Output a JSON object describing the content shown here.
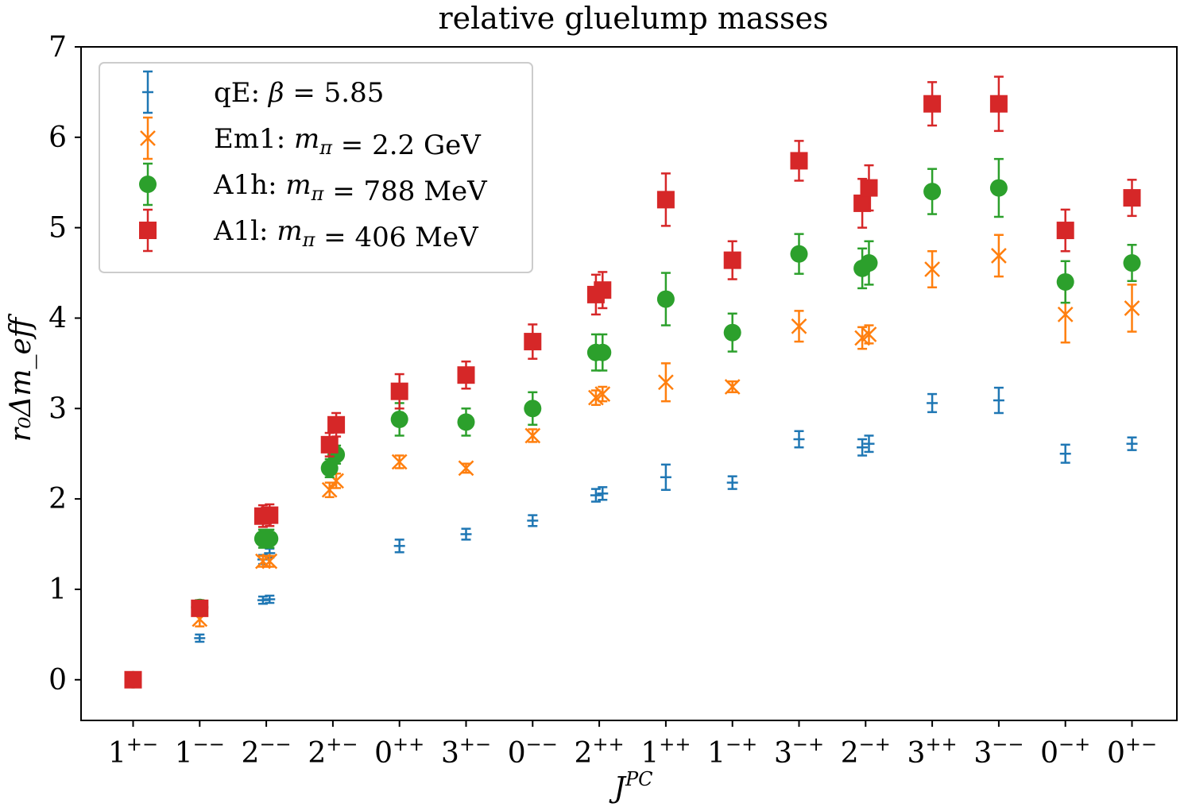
{
  "chart_data": {
    "type": "scatter",
    "title": "relative gluelump masses",
    "xlabel": "J",
    "xlabel_sup": "PC",
    "ylabel": "r₀Δm_eff",
    "ylim": [
      -0.45,
      7.0
    ],
    "yticks": [
      0,
      1,
      2,
      3,
      4,
      5,
      6,
      7
    ],
    "legend_position": "top-left",
    "categories": [
      {
        "base": "1",
        "sup": "+−"
      },
      {
        "base": "1",
        "sup": "−−"
      },
      {
        "base": "2",
        "sup": "−−"
      },
      {
        "base": "2",
        "sup": "+−"
      },
      {
        "base": "0",
        "sup": "++"
      },
      {
        "base": "3",
        "sup": "+−"
      },
      {
        "base": "0",
        "sup": "−−"
      },
      {
        "base": "2",
        "sup": "++"
      },
      {
        "base": "1",
        "sup": "++"
      },
      {
        "base": "1",
        "sup": "−+"
      },
      {
        "base": "3",
        "sup": "−+"
      },
      {
        "base": "2",
        "sup": "−+"
      },
      {
        "base": "3",
        "sup": "++"
      },
      {
        "base": "3",
        "sup": "−−"
      },
      {
        "base": "0",
        "sup": "−+"
      },
      {
        "base": "0",
        "sup": "+−"
      }
    ],
    "series": [
      {
        "name": "qE: β = 5.85",
        "color": "#1f77b4",
        "marker": "none",
        "points": [
          {
            "x": 0,
            "y": 0.0,
            "err": 0.0
          },
          {
            "x": 1,
            "y": 0.46,
            "err": 0.04
          },
          {
            "x": 1.95,
            "y": 0.88,
            "err": 0.04
          },
          {
            "x": 2.05,
            "y": 0.89,
            "err": 0.04
          },
          {
            "x": 1.95,
            "y": 1.33,
            "err": 0.05
          },
          {
            "x": 2.05,
            "y": 1.4,
            "err": 0.05
          },
          {
            "x": 4,
            "y": 1.48,
            "err": 0.07
          },
          {
            "x": 5,
            "y": 1.61,
            "err": 0.06
          },
          {
            "x": 6,
            "y": 1.76,
            "err": 0.06
          },
          {
            "x": 6.95,
            "y": 2.04,
            "err": 0.07
          },
          {
            "x": 7.05,
            "y": 2.06,
            "err": 0.07
          },
          {
            "x": 8,
            "y": 2.24,
            "err": 0.14
          },
          {
            "x": 9,
            "y": 2.18,
            "err": 0.07
          },
          {
            "x": 10,
            "y": 2.66,
            "err": 0.09
          },
          {
            "x": 10.95,
            "y": 2.57,
            "err": 0.09
          },
          {
            "x": 11.05,
            "y": 2.61,
            "err": 0.09
          },
          {
            "x": 12,
            "y": 3.06,
            "err": 0.1
          },
          {
            "x": 13,
            "y": 3.09,
            "err": 0.14
          },
          {
            "x": 14,
            "y": 2.5,
            "err": 0.1
          },
          {
            "x": 15,
            "y": 2.61,
            "err": 0.07
          }
        ]
      },
      {
        "name": "Em1: m_π = 2.2 GeV",
        "color": "#ff7f0e",
        "marker": "x",
        "points": [
          {
            "x": 0,
            "y": 0.0,
            "err": 0.0
          },
          {
            "x": 1,
            "y": 0.67,
            "err": 0.08
          },
          {
            "x": 1.95,
            "y": 1.31,
            "err": 0.06
          },
          {
            "x": 2.05,
            "y": 1.31,
            "err": 0.06
          },
          {
            "x": 2.95,
            "y": 2.1,
            "err": 0.08
          },
          {
            "x": 3.05,
            "y": 2.2,
            "err": 0.08
          },
          {
            "x": 4,
            "y": 2.41,
            "err": 0.07
          },
          {
            "x": 5,
            "y": 2.34,
            "err": 0.05
          },
          {
            "x": 6,
            "y": 2.7,
            "err": 0.07
          },
          {
            "x": 6.95,
            "y": 3.12,
            "err": 0.08
          },
          {
            "x": 7.05,
            "y": 3.16,
            "err": 0.08
          },
          {
            "x": 8,
            "y": 3.29,
            "err": 0.21
          },
          {
            "x": 9,
            "y": 3.24,
            "err": 0.06
          },
          {
            "x": 10,
            "y": 3.91,
            "err": 0.17
          },
          {
            "x": 10.95,
            "y": 3.78,
            "err": 0.12
          },
          {
            "x": 11.05,
            "y": 3.82,
            "err": 0.1
          },
          {
            "x": 12,
            "y": 4.54,
            "err": 0.2
          },
          {
            "x": 13,
            "y": 4.69,
            "err": 0.23
          },
          {
            "x": 14,
            "y": 4.04,
            "err": 0.31
          },
          {
            "x": 15,
            "y": 4.11,
            "err": 0.26
          }
        ]
      },
      {
        "name": "A1h: m_π = 788 MeV",
        "color": "#2ca02c",
        "marker": "circle",
        "points": [
          {
            "x": 0,
            "y": 0.0,
            "err": 0.0
          },
          {
            "x": 1,
            "y": 0.8,
            "err": 0.08
          },
          {
            "x": 1.95,
            "y": 1.56,
            "err": 0.1
          },
          {
            "x": 2.05,
            "y": 1.56,
            "err": 0.1
          },
          {
            "x": 2.95,
            "y": 2.34,
            "err": 0.1
          },
          {
            "x": 3.05,
            "y": 2.49,
            "err": 0.1
          },
          {
            "x": 4,
            "y": 2.88,
            "err": 0.18
          },
          {
            "x": 5,
            "y": 2.85,
            "err": 0.15
          },
          {
            "x": 6,
            "y": 3.0,
            "err": 0.18
          },
          {
            "x": 6.95,
            "y": 3.62,
            "err": 0.2
          },
          {
            "x": 7.05,
            "y": 3.62,
            "err": 0.2
          },
          {
            "x": 8,
            "y": 4.21,
            "err": 0.29
          },
          {
            "x": 9,
            "y": 3.84,
            "err": 0.21
          },
          {
            "x": 10,
            "y": 4.71,
            "err": 0.22
          },
          {
            "x": 10.95,
            "y": 4.55,
            "err": 0.22
          },
          {
            "x": 11.05,
            "y": 4.61,
            "err": 0.24
          },
          {
            "x": 12,
            "y": 5.4,
            "err": 0.25
          },
          {
            "x": 13,
            "y": 5.44,
            "err": 0.32
          },
          {
            "x": 14,
            "y": 4.4,
            "err": 0.23
          },
          {
            "x": 15,
            "y": 4.61,
            "err": 0.2
          }
        ]
      },
      {
        "name": "A1l: m_π = 406 MeV",
        "color": "#d62728",
        "marker": "square",
        "points": [
          {
            "x": 0,
            "y": 0.0,
            "err": 0.0
          },
          {
            "x": 1,
            "y": 0.79,
            "err": 0.07
          },
          {
            "x": 1.95,
            "y": 1.81,
            "err": 0.12
          },
          {
            "x": 2.05,
            "y": 1.82,
            "err": 0.12
          },
          {
            "x": 2.95,
            "y": 2.6,
            "err": 0.13
          },
          {
            "x": 3.05,
            "y": 2.82,
            "err": 0.13
          },
          {
            "x": 4,
            "y": 3.19,
            "err": 0.19
          },
          {
            "x": 5,
            "y": 3.37,
            "err": 0.15
          },
          {
            "x": 6,
            "y": 3.74,
            "err": 0.19
          },
          {
            "x": 6.95,
            "y": 4.26,
            "err": 0.22
          },
          {
            "x": 7.05,
            "y": 4.31,
            "err": 0.2
          },
          {
            "x": 8,
            "y": 5.31,
            "err": 0.29
          },
          {
            "x": 9,
            "y": 4.64,
            "err": 0.21
          },
          {
            "x": 10,
            "y": 5.74,
            "err": 0.22
          },
          {
            "x": 10.95,
            "y": 5.27,
            "err": 0.27
          },
          {
            "x": 11.05,
            "y": 5.44,
            "err": 0.25
          },
          {
            "x": 12,
            "y": 6.37,
            "err": 0.24
          },
          {
            "x": 13,
            "y": 6.37,
            "err": 0.3
          },
          {
            "x": 14,
            "y": 4.97,
            "err": 0.23
          },
          {
            "x": 15,
            "y": 5.33,
            "err": 0.2
          }
        ]
      }
    ],
    "legend": [
      {
        "lead": "qE: ",
        "var": "β",
        "sub": "",
        "eq": " = ",
        "val": "5.85",
        "unit": ""
      },
      {
        "lead": "Em1: ",
        "var": "m",
        "sub": "π",
        "eq": " = ",
        "val": "2.2",
        "unit": " GeV"
      },
      {
        "lead": "A1h: ",
        "var": "m",
        "sub": "π",
        "eq": " = ",
        "val": "788",
        "unit": " MeV"
      },
      {
        "lead": "A1l: ",
        "var": "m",
        "sub": "π",
        "eq": " = ",
        "val": "406",
        "unit": " MeV"
      }
    ]
  }
}
